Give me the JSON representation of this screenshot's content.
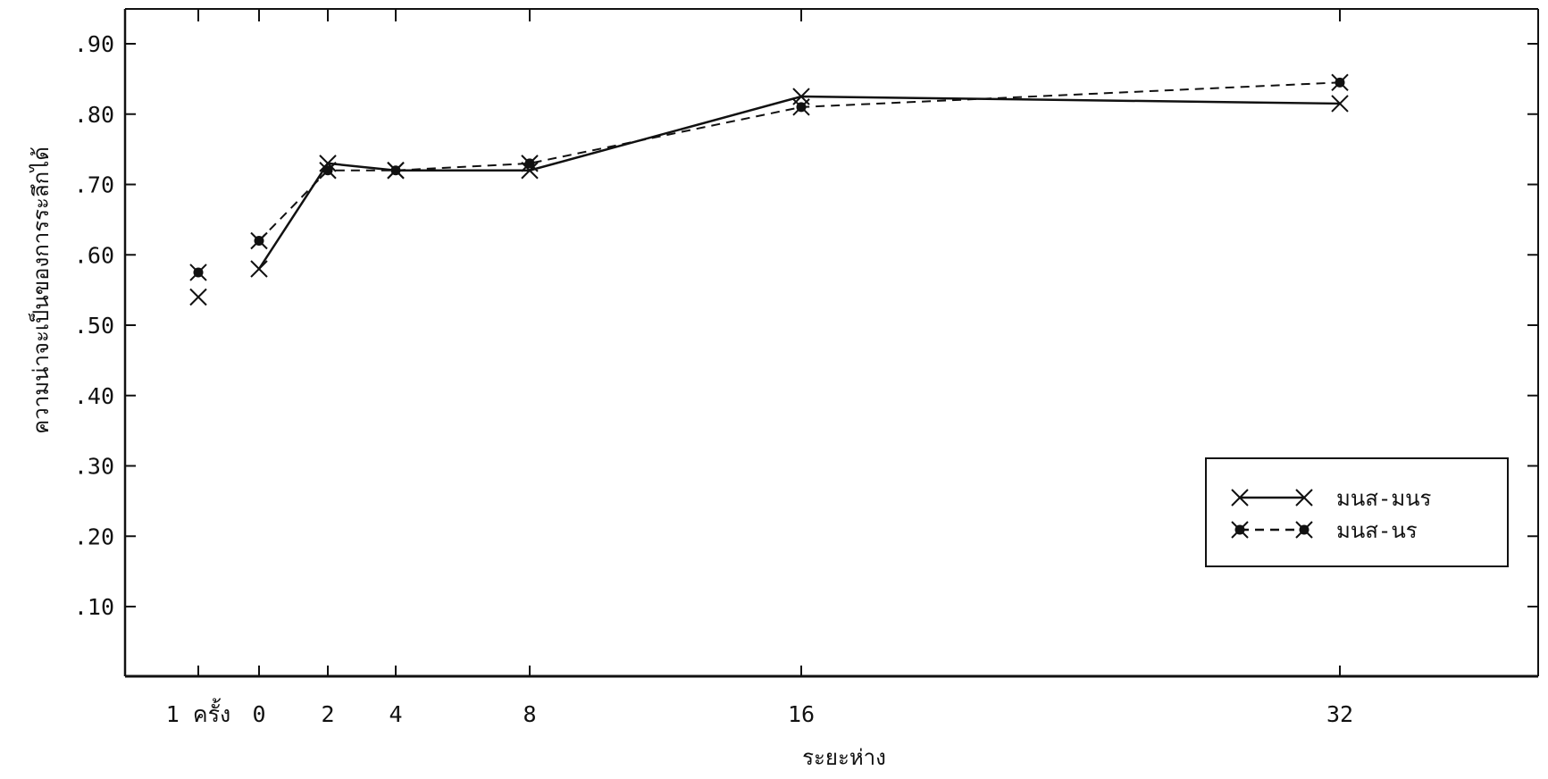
{
  "chart_data": {
    "type": "line",
    "ylabel": "ความน่าจะเป็นของการระลึกได้",
    "xlabel": "ระยะห่าง",
    "x_ticks": [
      "1 ครั้ง",
      "0",
      "2",
      "4",
      "8",
      "16",
      "32"
    ],
    "x": [
      0,
      2,
      4,
      8,
      16,
      32
    ],
    "y_ticks": [
      ".10",
      ".20",
      ".30",
      ".40",
      ".50",
      ".60",
      ".70",
      ".80",
      ".90"
    ],
    "ylim": [
      0,
      0.95
    ],
    "legend_position": "lower-right",
    "single_presentation": {
      "label": "1 ครั้ง",
      "values": [
        0.54,
        0.575
      ]
    },
    "series": [
      {
        "name": "มนส-มนร",
        "style": "solid",
        "marker": "x",
        "values": [
          0.58,
          0.73,
          0.72,
          0.72,
          0.825,
          0.815
        ]
      },
      {
        "name": "มนส-นร",
        "style": "dashed",
        "marker": "x-filled",
        "values": [
          0.62,
          0.72,
          0.72,
          0.73,
          0.81,
          0.845
        ]
      }
    ]
  }
}
